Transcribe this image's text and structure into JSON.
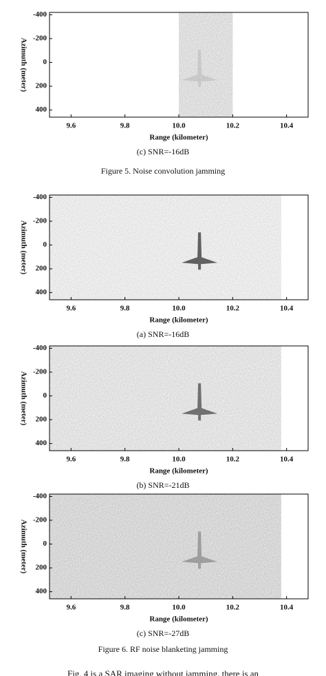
{
  "chart_data": [
    {
      "type": "image",
      "xlabel": "Range (kilometer)",
      "ylabel": "Azimuth (meter)",
      "caption": "(c) SNR=-16dB",
      "xlim": [
        9.52,
        10.48
      ],
      "ylim": [
        -420,
        460
      ],
      "noise_xlim": [
        10.0,
        10.2
      ],
      "xticks": [
        9.6,
        9.8,
        {
          "value": 10,
          "label": "10.0"
        },
        10.2,
        10.4
      ],
      "yticks": [
        -400,
        -200,
        0,
        200,
        400
      ]
    },
    {
      "type": "image",
      "xlabel": "Range (kilometer)",
      "ylabel": "Azimuth (meter)",
      "caption": "(a) SNR=-16dB",
      "xlim": [
        9.52,
        10.48
      ],
      "ylim": [
        -420,
        460
      ],
      "noise_xlim": [
        9.52,
        10.38
      ],
      "xticks": [
        9.6,
        9.8,
        {
          "value": 10,
          "label": "10.0"
        },
        10.2,
        10.4
      ],
      "yticks": [
        -400,
        -200,
        0,
        200,
        400
      ]
    },
    {
      "type": "image",
      "xlabel": "Range (kilometer)",
      "ylabel": "Azimuth (meter)",
      "caption": "(b) SNR=-21dB",
      "xlim": [
        9.52,
        10.48
      ],
      "ylim": [
        -420,
        460
      ],
      "noise_xlim": [
        9.52,
        10.38
      ],
      "xticks": [
        9.6,
        9.8,
        {
          "value": 10,
          "label": "10.0"
        },
        10.2,
        10.4
      ],
      "yticks": [
        -400,
        -200,
        0,
        200,
        400
      ]
    },
    {
      "type": "image",
      "xlabel": "Range (kilometer)",
      "ylabel": "Azimuth (meter)",
      "caption": "(c) SNR=-27dB",
      "xlim": [
        9.52,
        10.48
      ],
      "ylim": [
        -420,
        460
      ],
      "noise_xlim": [
        9.52,
        10.38
      ],
      "xticks": [
        9.6,
        9.8,
        {
          "value": 10,
          "label": "10.0"
        },
        10.2,
        10.4
      ],
      "yticks": [
        -400,
        -200,
        0,
        200,
        400
      ]
    }
  ],
  "figure_captions": [
    "Figure 5.  Noise convolution jamming",
    "Figure 6.  RF noise blanketing jamming"
  ],
  "body_text": "Fig. 4 is a SAR imaging without jamming, there is an"
}
